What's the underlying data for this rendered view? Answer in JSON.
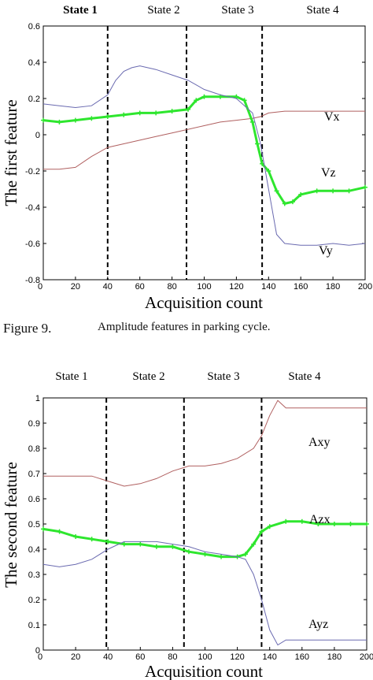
{
  "charts": {
    "top": {
      "state_labels": [
        "State 1",
        "State 2",
        "State 3",
        "State 4"
      ],
      "xlabel": "Acquisition count",
      "ylabel": "The first feature",
      "xticks": [
        "0",
        "20",
        "40",
        "60",
        "80",
        "100",
        "120",
        "140",
        "160",
        "180",
        "200"
      ],
      "yticks": [
        "-0.8",
        "-0.6",
        "-0.4",
        "-0.2",
        "0",
        "0.2",
        "0.4",
        "0.6"
      ],
      "series_labels": [
        "Vx",
        "Vz",
        "Vy"
      ]
    },
    "bottom": {
      "state_labels": [
        "State 1",
        "State 2",
        "State 3",
        "State 4"
      ],
      "xlabel": "Acquisition count",
      "ylabel": "The second feature",
      "xticks": [
        "0",
        "20",
        "40",
        "60",
        "80",
        "100",
        "120",
        "140",
        "160",
        "180",
        "200"
      ],
      "yticks": [
        "0",
        "0.1",
        "0.2",
        "0.3",
        "0.4",
        "0.5",
        "0.6",
        "0.7",
        "0.8",
        "0.9",
        "1"
      ],
      "series_labels": [
        "Axy",
        "Azx",
        "Ayz"
      ]
    }
  },
  "caption": {
    "figure_label": "Figure 9.",
    "text": "Amplitude features in parking cycle."
  },
  "colors": {
    "red_series": "#b06060",
    "blue_series": "#6a6ab0",
    "green_series": "#2ee62e",
    "divider": "#000000"
  },
  "chart_data": [
    {
      "type": "line",
      "xlabel": "Acquisition count",
      "ylabel": "The first feature",
      "xlim": [
        0,
        200
      ],
      "ylim": [
        -0.8,
        0.6
      ],
      "grid": false,
      "state_boundaries": [
        40,
        89,
        136
      ],
      "series": [
        {
          "name": "Vx",
          "x": [
            0,
            10,
            20,
            30,
            40,
            50,
            60,
            70,
            80,
            90,
            100,
            110,
            120,
            130,
            135,
            140,
            150,
            160,
            170,
            180,
            190,
            200
          ],
          "values": [
            -0.19,
            -0.19,
            -0.18,
            -0.12,
            -0.07,
            -0.05,
            -0.03,
            -0.01,
            0.01,
            0.03,
            0.05,
            0.07,
            0.08,
            0.09,
            0.1,
            0.12,
            0.13,
            0.13,
            0.13,
            0.13,
            0.13,
            0.13
          ]
        },
        {
          "name": "Vz",
          "x": [
            0,
            10,
            20,
            30,
            40,
            50,
            60,
            70,
            80,
            90,
            95,
            100,
            110,
            120,
            125,
            130,
            133,
            136,
            140,
            145,
            150,
            155,
            160,
            170,
            180,
            190,
            200
          ],
          "values": [
            0.08,
            0.07,
            0.08,
            0.09,
            0.1,
            0.11,
            0.12,
            0.12,
            0.13,
            0.14,
            0.19,
            0.21,
            0.21,
            0.21,
            0.19,
            0.07,
            -0.05,
            -0.16,
            -0.2,
            -0.31,
            -0.38,
            -0.37,
            -0.33,
            -0.31,
            -0.31,
            -0.31,
            -0.29
          ]
        },
        {
          "name": "Vy",
          "x": [
            0,
            10,
            20,
            30,
            40,
            45,
            50,
            55,
            60,
            70,
            80,
            90,
            100,
            110,
            120,
            130,
            135,
            140,
            145,
            150,
            160,
            170,
            180,
            190,
            200
          ],
          "values": [
            0.17,
            0.16,
            0.15,
            0.16,
            0.22,
            0.3,
            0.35,
            0.37,
            0.38,
            0.36,
            0.33,
            0.3,
            0.25,
            0.22,
            0.2,
            0.12,
            -0.05,
            -0.3,
            -0.55,
            -0.6,
            -0.61,
            -0.61,
            -0.6,
            -0.61,
            -0.6
          ]
        }
      ]
    },
    {
      "type": "line",
      "xlabel": "Acquisition count",
      "ylabel": "The second feature",
      "xlim": [
        0,
        200
      ],
      "ylim": [
        0,
        1
      ],
      "grid": false,
      "state_boundaries": [
        39,
        87,
        135
      ],
      "series": [
        {
          "name": "Axy",
          "x": [
            0,
            10,
            20,
            30,
            40,
            50,
            60,
            70,
            80,
            90,
            100,
            110,
            120,
            130,
            135,
            140,
            145,
            150,
            160,
            170,
            180,
            190,
            200
          ],
          "values": [
            0.69,
            0.69,
            0.69,
            0.69,
            0.67,
            0.65,
            0.66,
            0.68,
            0.71,
            0.73,
            0.73,
            0.74,
            0.76,
            0.8,
            0.85,
            0.93,
            0.99,
            0.96,
            0.96,
            0.96,
            0.96,
            0.96,
            0.96
          ]
        },
        {
          "name": "Azx",
          "x": [
            0,
            10,
            20,
            30,
            40,
            50,
            60,
            70,
            80,
            90,
            100,
            110,
            120,
            125,
            130,
            135,
            140,
            150,
            160,
            170,
            180,
            190,
            200
          ],
          "values": [
            0.48,
            0.47,
            0.45,
            0.44,
            0.43,
            0.42,
            0.42,
            0.41,
            0.41,
            0.39,
            0.38,
            0.37,
            0.37,
            0.38,
            0.42,
            0.47,
            0.49,
            0.51,
            0.51,
            0.5,
            0.5,
            0.5,
            0.5
          ]
        },
        {
          "name": "Ayz",
          "x": [
            0,
            10,
            20,
            30,
            40,
            50,
            60,
            70,
            80,
            90,
            100,
            110,
            120,
            125,
            130,
            135,
            140,
            145,
            150,
            160,
            170,
            180,
            190,
            200
          ],
          "values": [
            0.34,
            0.33,
            0.34,
            0.36,
            0.4,
            0.43,
            0.43,
            0.43,
            0.42,
            0.41,
            0.39,
            0.38,
            0.37,
            0.36,
            0.3,
            0.2,
            0.08,
            0.02,
            0.04,
            0.04,
            0.04,
            0.04,
            0.04,
            0.04
          ]
        }
      ]
    }
  ]
}
